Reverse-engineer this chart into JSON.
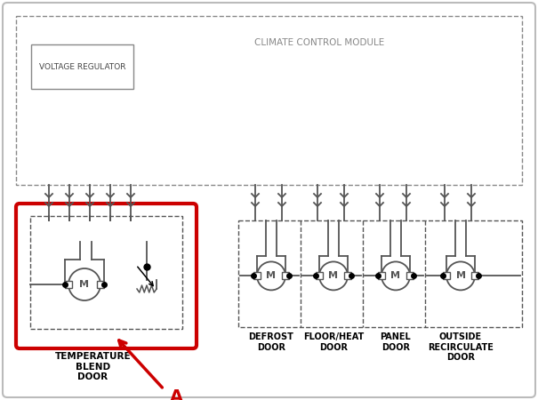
{
  "bg_color": "#ffffff",
  "line_color": "#555555",
  "gray_color": "#888888",
  "red_color": "#cc0000",
  "title_text": "CLIMATE CONTROL MODULE",
  "voltage_reg_text": "VOLTAGE REGULATOR",
  "temp_blend_text": "TEMPERATURE\nBLEND\nDOOR",
  "label_A": "A",
  "door_labels": [
    "DEFROST\nDOOR",
    "FLOOR/HEAT\nDOOR",
    "PANEL\nDOOR",
    "OUTSIDE\nRECIRCULATE\nDOOR"
  ]
}
